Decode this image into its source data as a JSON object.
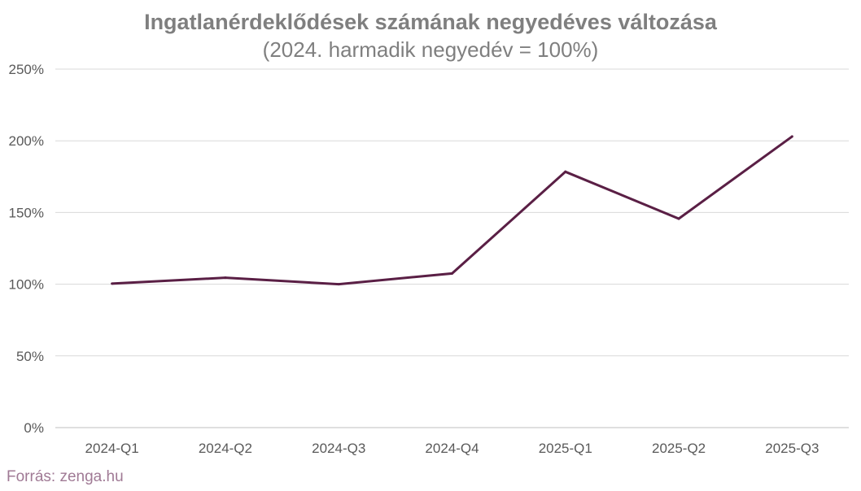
{
  "chart_data": {
    "type": "line",
    "title": "Ingatlanérdeklődések számának negyedéves változása",
    "subtitle": "(2024. harmadik negyedév = 100%)",
    "categories": [
      "2024-Q1",
      "2024-Q2",
      "2024-Q3",
      "2024-Q4",
      "2025-Q1",
      "2025-Q2",
      "2025-Q3"
    ],
    "series": [
      {
        "name": "Ingatlanérdeklődések",
        "values": [
          100.4,
          104.5,
          100,
          107.5,
          178.4,
          145.7,
          203
        ],
        "color": "#5a1f45"
      }
    ],
    "ylim": [
      0,
      250
    ],
    "yticks": [
      0,
      50,
      100,
      150,
      200,
      250
    ],
    "ytick_labels": [
      "0%",
      "50%",
      "100%",
      "150%",
      "200%",
      "250%"
    ],
    "grid": true,
    "xlabel": "",
    "ylabel": ""
  },
  "source": "Forrás: zenga.hu"
}
